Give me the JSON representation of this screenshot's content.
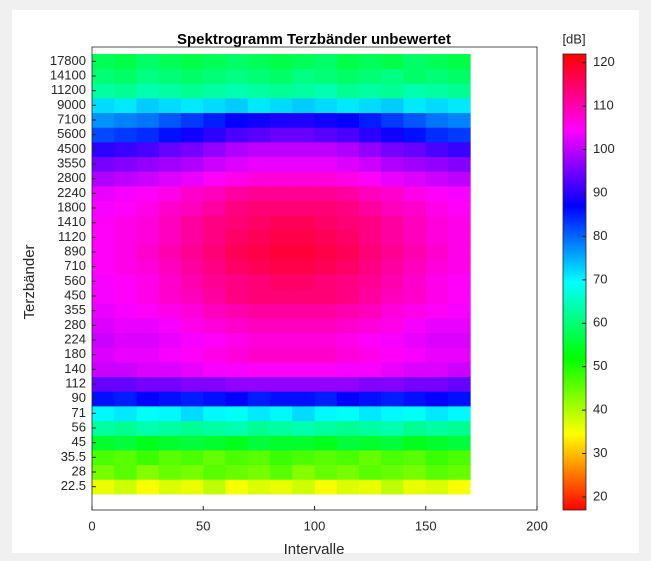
{
  "chart_data": {
    "type": "heatmap",
    "title": "Spektrogramm Terzbänder unbewertet",
    "xlabel": "Intervalle",
    "ylabel": "Terzbänder",
    "colorbar_label": "[dB]",
    "categories": [
      "22.5",
      "28",
      "35.5",
      "45",
      "56",
      "71",
      "90",
      "112",
      "140",
      "180",
      "224",
      "280",
      "355",
      "450",
      "560",
      "710",
      "890",
      "1120",
      "1410",
      "1800",
      "2240",
      "2800",
      "3550",
      "4500",
      "5600",
      "7100",
      "9000",
      "11200",
      "14100",
      "17800"
    ],
    "x_edges": [
      0,
      10,
      20,
      30,
      40,
      50,
      60,
      70,
      80,
      90,
      100,
      110,
      120,
      130,
      140,
      150,
      160,
      170
    ],
    "xlim": [
      0,
      200
    ],
    "xticks": [
      0,
      50,
      100,
      150,
      200
    ],
    "clim": [
      17,
      122
    ],
    "cticks": [
      20,
      30,
      40,
      50,
      60,
      70,
      80,
      90,
      100,
      110,
      120
    ],
    "values": [
      [
        36,
        38,
        35,
        37,
        36,
        39,
        35,
        37,
        36,
        38,
        35,
        37,
        36,
        39,
        36,
        37,
        35
      ],
      [
        44,
        46,
        43,
        45,
        44,
        46,
        45,
        44,
        46,
        43,
        45,
        44,
        46,
        45,
        44,
        46,
        45
      ],
      [
        47,
        46,
        48,
        46,
        47,
        45,
        47,
        46,
        48,
        47,
        46,
        47,
        45,
        47,
        46,
        48,
        47
      ],
      [
        55,
        56,
        54,
        55,
        56,
        55,
        54,
        56,
        55,
        55,
        54,
        56,
        55,
        56,
        54,
        55,
        56
      ],
      [
        63,
        62,
        64,
        63,
        62,
        63,
        64,
        62,
        63,
        64,
        63,
        62,
        63,
        64,
        62,
        63,
        62
      ],
      [
        70,
        71,
        69,
        70,
        72,
        70,
        69,
        71,
        70,
        72,
        70,
        69,
        71,
        70,
        69,
        71,
        70
      ],
      [
        86,
        85,
        87,
        86,
        85,
        86,
        87,
        85,
        86,
        86,
        85,
        87,
        86,
        85,
        86,
        87,
        86
      ],
      [
        94,
        94,
        95,
        95,
        96,
        96,
        97,
        97,
        97,
        97,
        97,
        97,
        96,
        96,
        95,
        95,
        94
      ],
      [
        101,
        101,
        102,
        102,
        103,
        104,
        104,
        105,
        105,
        105,
        105,
        104,
        104,
        103,
        102,
        102,
        101
      ],
      [
        102,
        103,
        103,
        104,
        105,
        106,
        107,
        108,
        108,
        108,
        108,
        107,
        106,
        105,
        104,
        103,
        103
      ],
      [
        101,
        102,
        102,
        103,
        104,
        105,
        106,
        107,
        107,
        107,
        107,
        106,
        105,
        104,
        103,
        102,
        102
      ],
      [
        102,
        103,
        103,
        104,
        106,
        107,
        108,
        109,
        109,
        109,
        109,
        108,
        107,
        106,
        104,
        103,
        103
      ],
      [
        103,
        104,
        105,
        106,
        107,
        109,
        110,
        111,
        111,
        111,
        111,
        110,
        109,
        107,
        106,
        105,
        104
      ],
      [
        104,
        105,
        106,
        108,
        109,
        111,
        113,
        114,
        114,
        114,
        114,
        113,
        111,
        109,
        108,
        106,
        105
      ],
      [
        104,
        105,
        106,
        108,
        110,
        112,
        113,
        114,
        115,
        115,
        114,
        113,
        112,
        110,
        108,
        106,
        105
      ],
      [
        105,
        106,
        107,
        109,
        111,
        113,
        115,
        116,
        117,
        117,
        116,
        115,
        113,
        111,
        109,
        107,
        106
      ],
      [
        105,
        106,
        108,
        110,
        112,
        114,
        116,
        117,
        118,
        118,
        117,
        116,
        114,
        112,
        110,
        108,
        106
      ],
      [
        105,
        106,
        107,
        109,
        111,
        113,
        115,
        116,
        117,
        117,
        116,
        115,
        113,
        111,
        109,
        107,
        106
      ],
      [
        105,
        106,
        107,
        109,
        111,
        113,
        114,
        115,
        116,
        116,
        115,
        114,
        113,
        111,
        109,
        107,
        106
      ],
      [
        104,
        105,
        106,
        108,
        109,
        111,
        113,
        114,
        114,
        114,
        114,
        113,
        111,
        109,
        108,
        106,
        105
      ],
      [
        103,
        104,
        105,
        106,
        108,
        109,
        111,
        112,
        112,
        112,
        112,
        111,
        109,
        108,
        106,
        105,
        104
      ],
      [
        99,
        100,
        101,
        102,
        103,
        105,
        106,
        107,
        107,
        107,
        107,
        106,
        105,
        103,
        102,
        101,
        100
      ],
      [
        95,
        96,
        97,
        98,
        99,
        101,
        102,
        103,
        103,
        103,
        103,
        102,
        101,
        99,
        98,
        97,
        96
      ],
      [
        90,
        91,
        92,
        94,
        95,
        97,
        99,
        100,
        100,
        100,
        100,
        99,
        97,
        95,
        94,
        92,
        91
      ],
      [
        82,
        83,
        84,
        86,
        88,
        90,
        92,
        93,
        94,
        94,
        93,
        92,
        90,
        88,
        86,
        84,
        83
      ],
      [
        77,
        78,
        79,
        81,
        83,
        85,
        87,
        88,
        89,
        89,
        88,
        87,
        85,
        83,
        81,
        79,
        78
      ],
      [
        72,
        71,
        73,
        72,
        71,
        72,
        73,
        71,
        72,
        73,
        72,
        71,
        72,
        73,
        71,
        72,
        71
      ],
      [
        63,
        62,
        64,
        63,
        62,
        63,
        64,
        63,
        62,
        63,
        64,
        62,
        63,
        62,
        64,
        63,
        62
      ],
      [
        60,
        59,
        61,
        60,
        59,
        60,
        61,
        60,
        59,
        61,
        60,
        59,
        60,
        61,
        59,
        60,
        59
      ],
      [
        58,
        57,
        59,
        58,
        57,
        58,
        59,
        58,
        57,
        58,
        59,
        57,
        58,
        57,
        59,
        58,
        57
      ]
    ]
  }
}
